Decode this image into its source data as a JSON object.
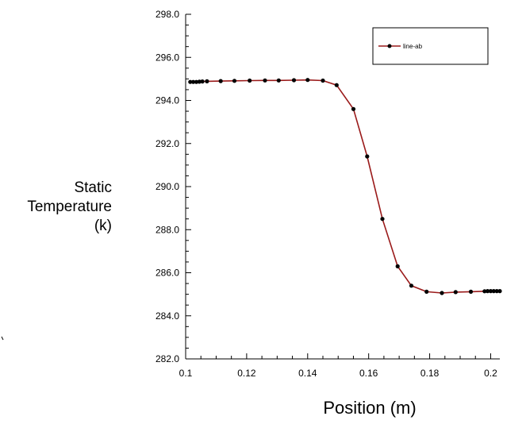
{
  "chart_data": {
    "type": "line",
    "xlabel": "Position (m)",
    "ylabel_lines": [
      "Static",
      "Temperature",
      "(k)"
    ],
    "xlim": [
      0.1,
      0.203
    ],
    "ylim": [
      282.0,
      298.0
    ],
    "x_ticks": [
      0.1,
      0.12,
      0.14,
      0.16,
      0.18,
      0.2
    ],
    "x_tick_labels": [
      "0.1",
      "0.12",
      "0.14",
      "0.16",
      "0.18",
      "0.2"
    ],
    "y_ticks": [
      282.0,
      284.0,
      286.0,
      288.0,
      290.0,
      292.0,
      294.0,
      296.0,
      298.0
    ],
    "y_tick_labels": [
      "282.0",
      "284.0",
      "286.0",
      "288.0",
      "290.0",
      "292.0",
      "294.0",
      "296.0",
      "298.0"
    ],
    "legend_position": "top-right",
    "series": [
      {
        "name": "line-ab",
        "line_color": "#9a1a1a",
        "marker_color": "#000000",
        "points": [
          [
            0.1015,
            294.86
          ],
          [
            0.1025,
            294.86
          ],
          [
            0.1035,
            294.86
          ],
          [
            0.1045,
            294.87
          ],
          [
            0.1055,
            294.88
          ],
          [
            0.107,
            294.89
          ],
          [
            0.1115,
            294.9
          ],
          [
            0.116,
            294.91
          ],
          [
            0.121,
            294.92
          ],
          [
            0.126,
            294.93
          ],
          [
            0.1305,
            294.93
          ],
          [
            0.1355,
            294.94
          ],
          [
            0.14,
            294.95
          ],
          [
            0.145,
            294.92
          ],
          [
            0.1495,
            294.71
          ],
          [
            0.155,
            293.6
          ],
          [
            0.1595,
            291.4
          ],
          [
            0.1645,
            288.5
          ],
          [
            0.1695,
            286.3
          ],
          [
            0.174,
            285.4
          ],
          [
            0.179,
            285.12
          ],
          [
            0.184,
            285.06
          ],
          [
            0.1885,
            285.1
          ],
          [
            0.1935,
            285.12
          ],
          [
            0.198,
            285.14
          ],
          [
            0.199,
            285.15
          ],
          [
            0.2,
            285.15
          ],
          [
            0.201,
            285.15
          ],
          [
            0.202,
            285.15
          ],
          [
            0.203,
            285.15
          ]
        ]
      }
    ]
  }
}
